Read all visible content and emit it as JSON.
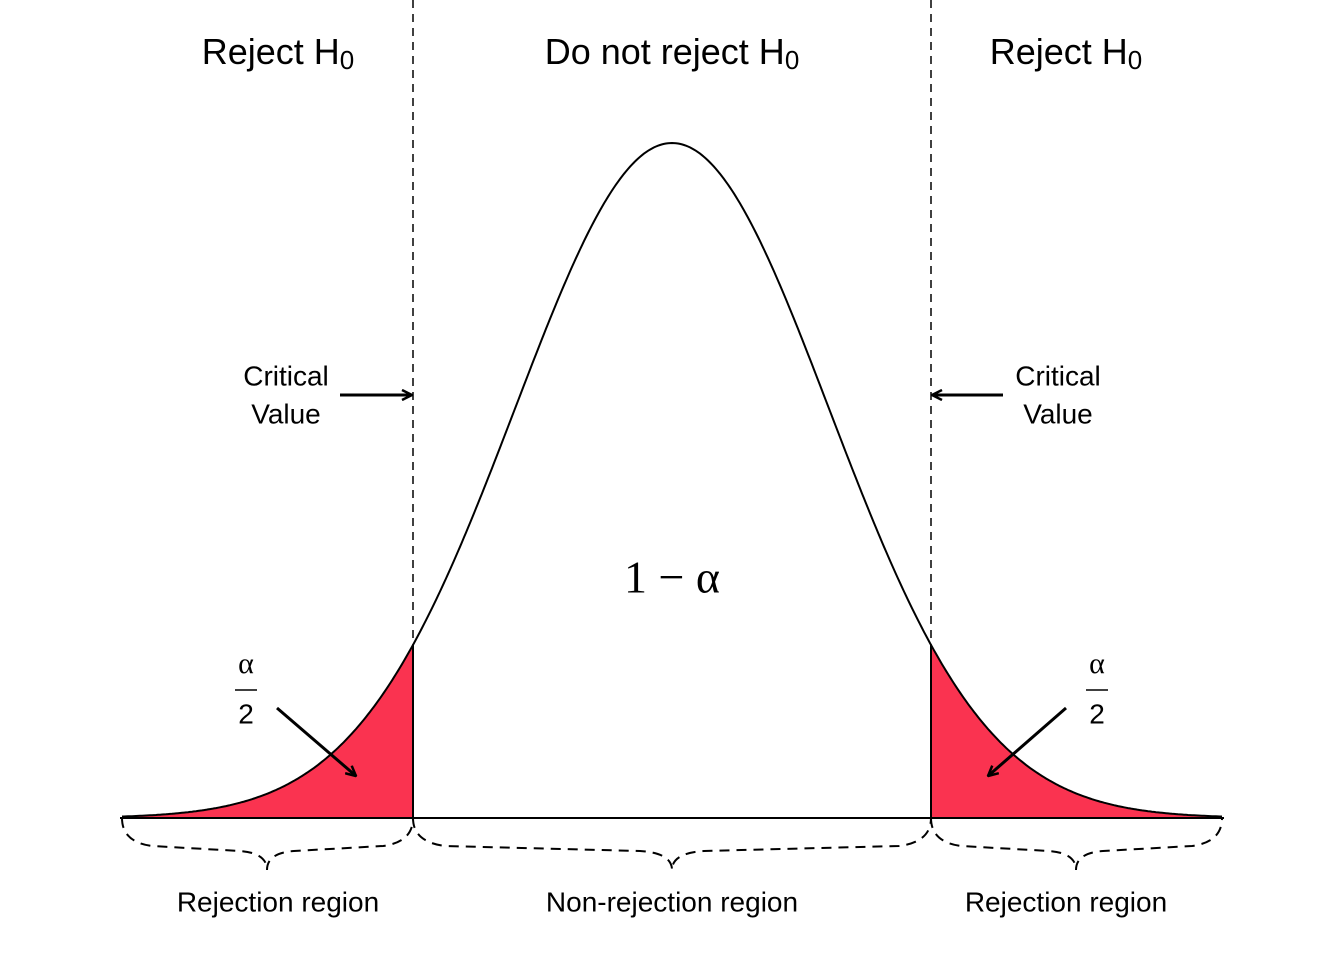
{
  "headers": [
    {
      "text": "Reject H",
      "subscript": "0"
    },
    {
      "text": "Do not reject H",
      "subscript": "0"
    },
    {
      "text": "Reject H",
      "subscript": "0"
    }
  ],
  "critical_value_labels": [
    {
      "lines": [
        "Critical",
        "Value"
      ]
    },
    {
      "lines": [
        "Critical",
        "Value"
      ]
    }
  ],
  "center_label": "1 − α",
  "tail_labels": [
    {
      "numerator": "α",
      "denominator": "2"
    },
    {
      "numerator": "α",
      "denominator": "2"
    }
  ],
  "region_labels": [
    "Rejection region",
    "Non-rejection region",
    "Rejection region"
  ]
}
